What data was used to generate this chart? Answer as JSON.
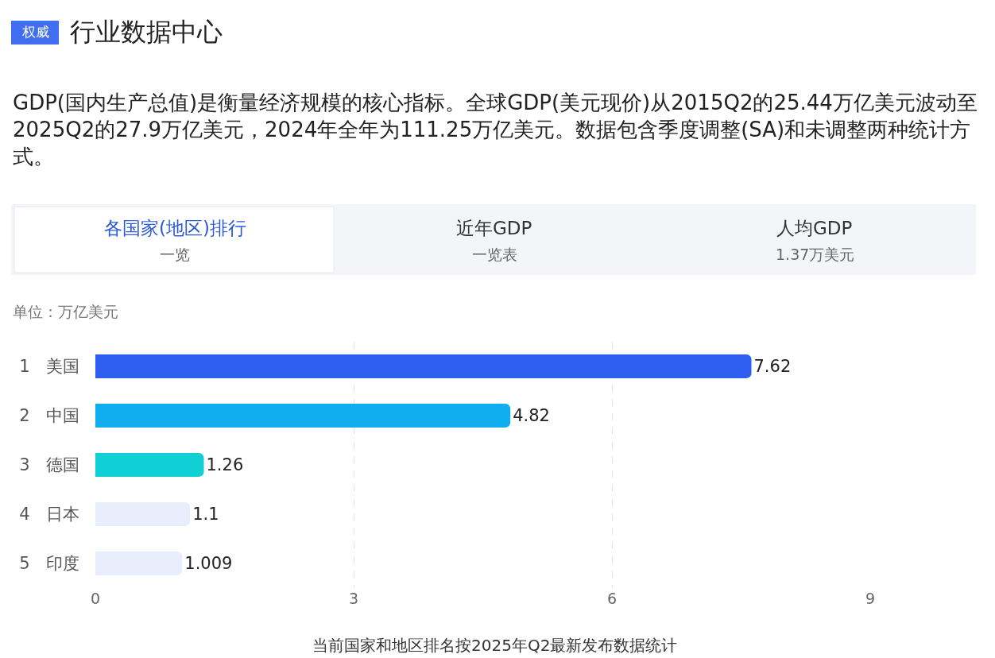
{
  "chart_data": {
    "type": "bar",
    "orientation": "horizontal",
    "title": "行业数据中心",
    "subtitle": "GDP(国内生产总值)是衡量经济规模的核心指标。全球GDP(美元现价)从2015Q2的25.44万亿美元波动至2025Q2的27.9万亿美元，2024年全年为111.25万亿美元。数据包含季度调整(SA)和未调整两种统计方式。",
    "ylabel": "单位：万亿美元",
    "categories": [
      "1 美国",
      "2 中国",
      "3 德国",
      "4 日本",
      "5 印度"
    ],
    "values": [
      7.62,
      4.82,
      1.26,
      1.1,
      1.009
    ],
    "colors": [
      "#2f5ff0",
      "#10aeee",
      "#10d0d6",
      "#e8eefb",
      "#e8eefb"
    ],
    "value_labels": [
      "7.62",
      "4.82",
      "1.26",
      "1.1",
      "1.009"
    ],
    "xlim": [
      0,
      9
    ],
    "xticks": [
      0,
      3,
      6,
      9
    ],
    "grid": "x",
    "annotations": [
      "权威",
      "各国家(地区)排行",
      "一览",
      "近年GDP",
      "一览表",
      "人均GDP",
      "1.37万美元",
      "当前国家和地区排名按2025年Q2最新发布数据统计"
    ]
  }
}
